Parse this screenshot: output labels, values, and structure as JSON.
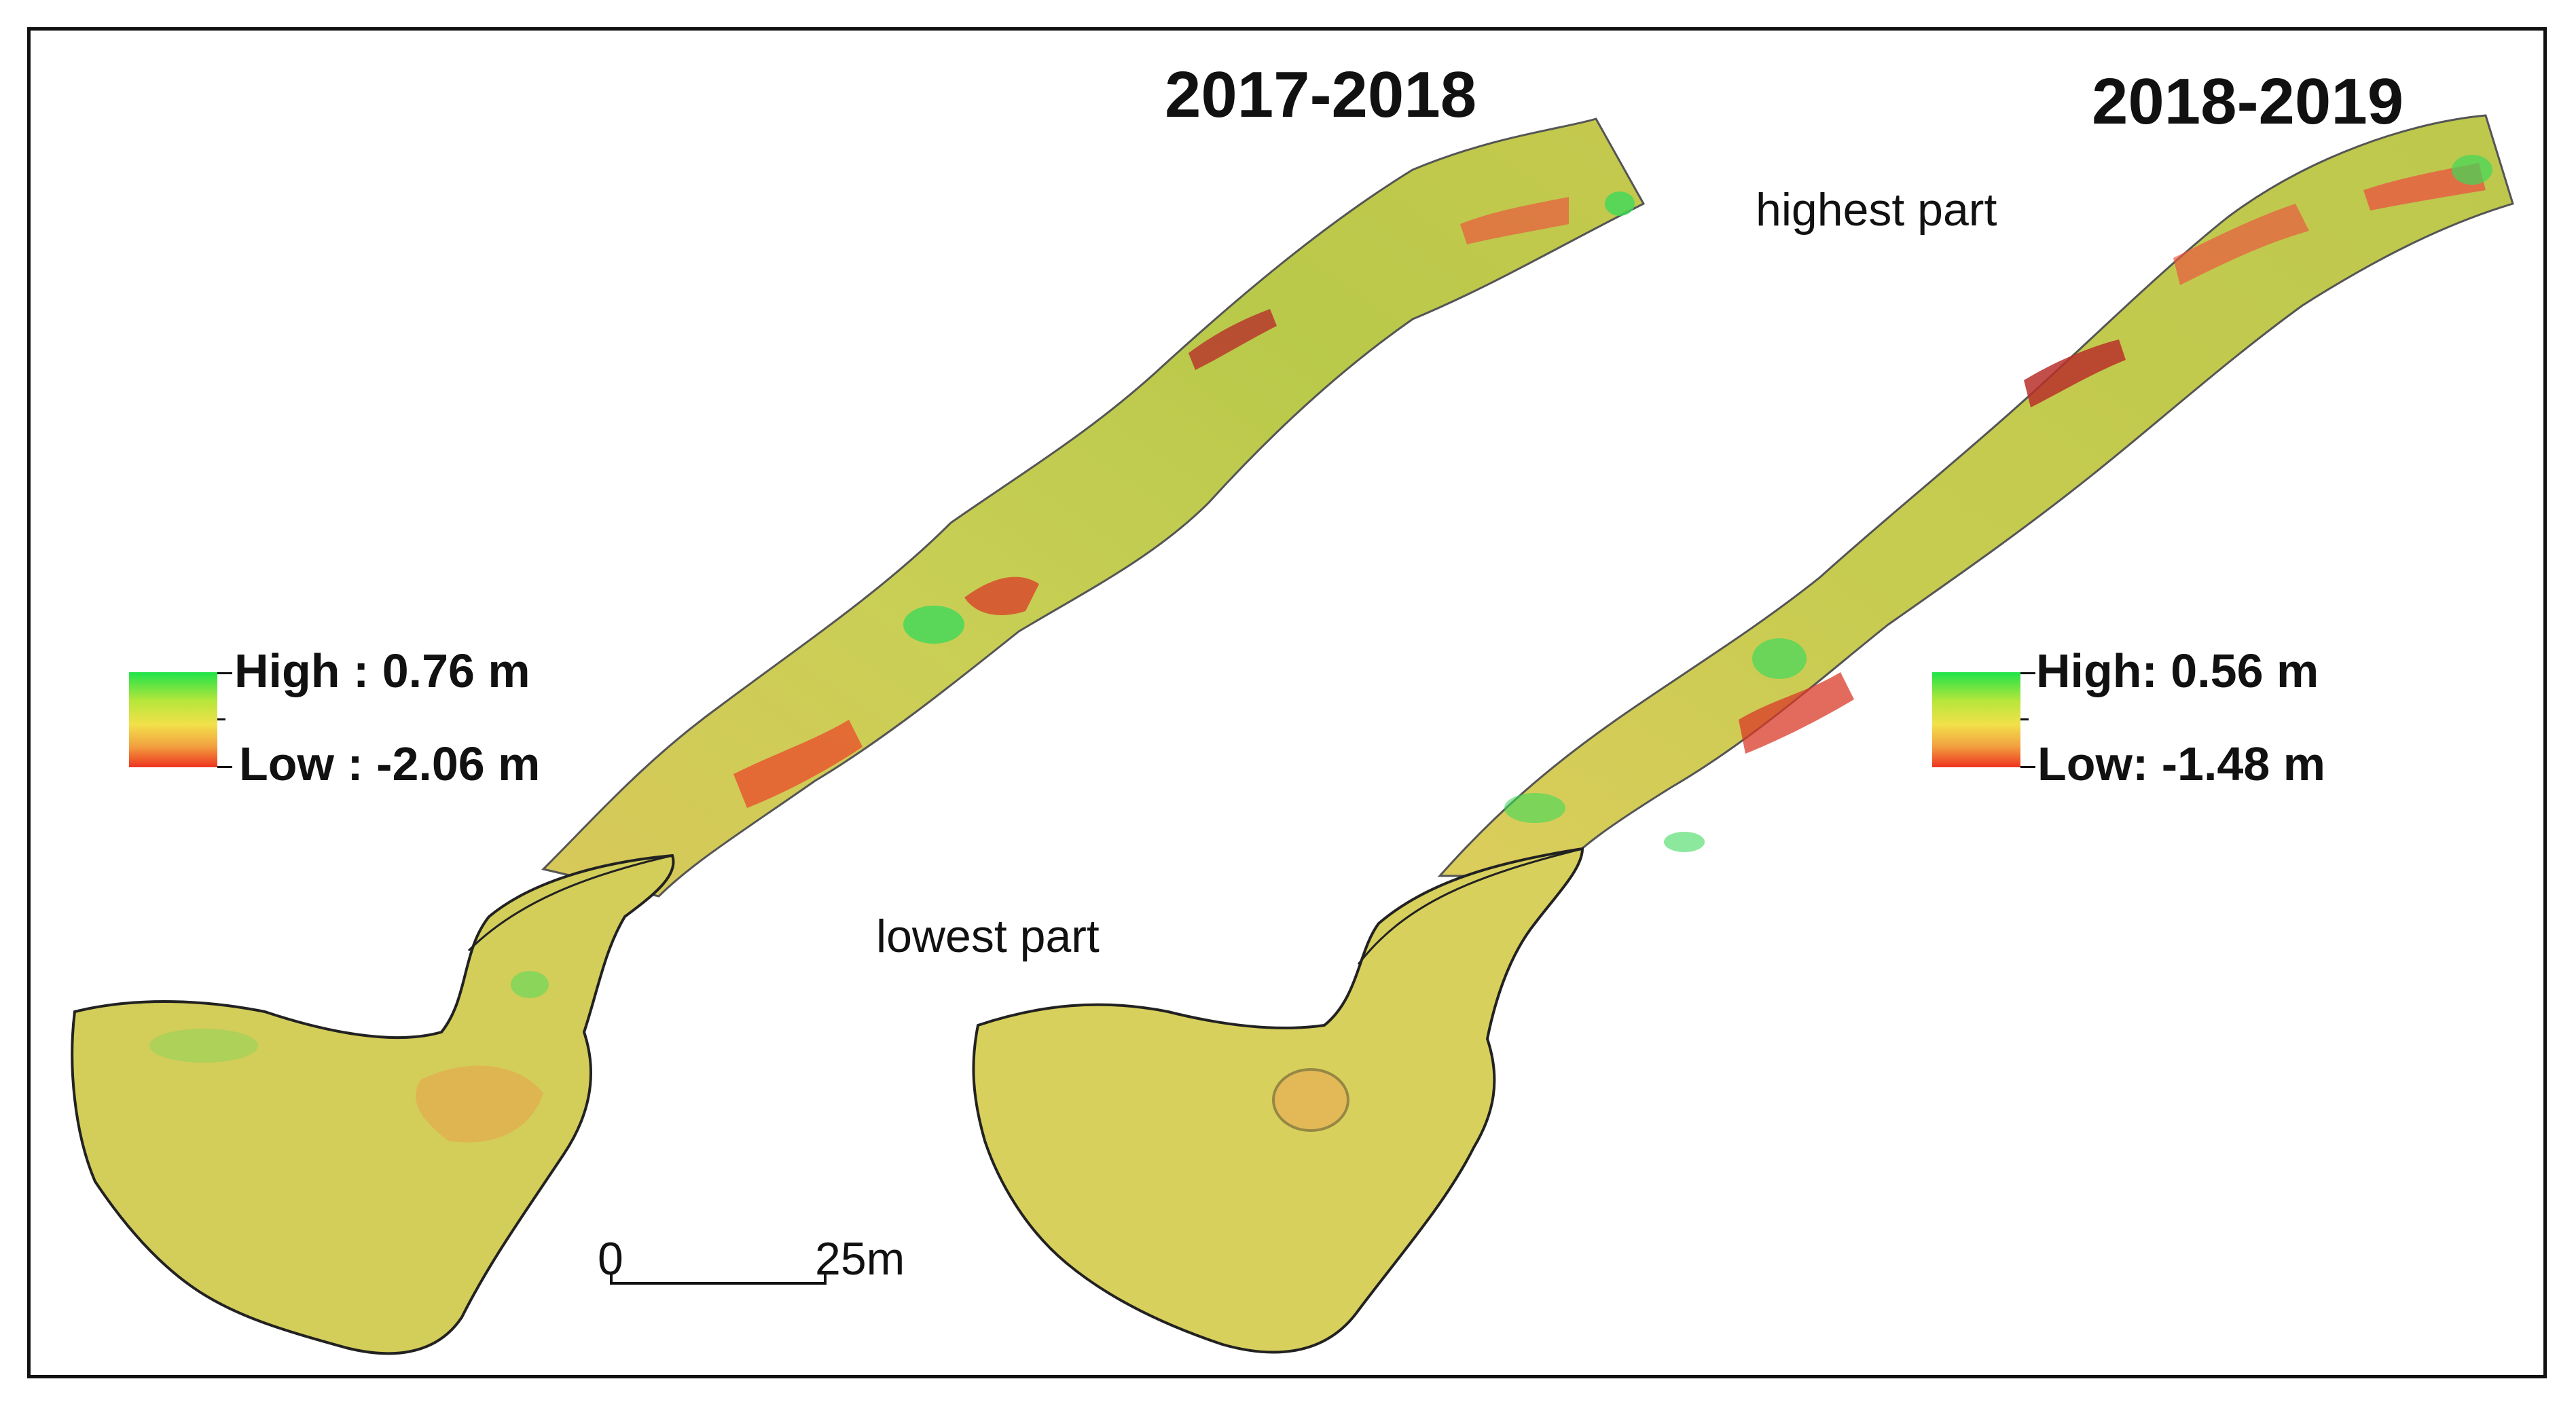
{
  "periods": {
    "left": "2017-2018",
    "right": "2018-2019"
  },
  "annotations": {
    "top": "highest part",
    "bottom": "lowest part"
  },
  "legends": {
    "left": {
      "high": "High : 0.76 m",
      "low": "Low : -2.06 m"
    },
    "right": {
      "high": "High: 0.56 m",
      "low": "Low: -1.48 m"
    }
  },
  "scale_bar": {
    "start": "0",
    "end": "25m"
  },
  "colors": {
    "high": "#1fe34a",
    "mid": "#f2e14a",
    "low": "#ee3320"
  }
}
